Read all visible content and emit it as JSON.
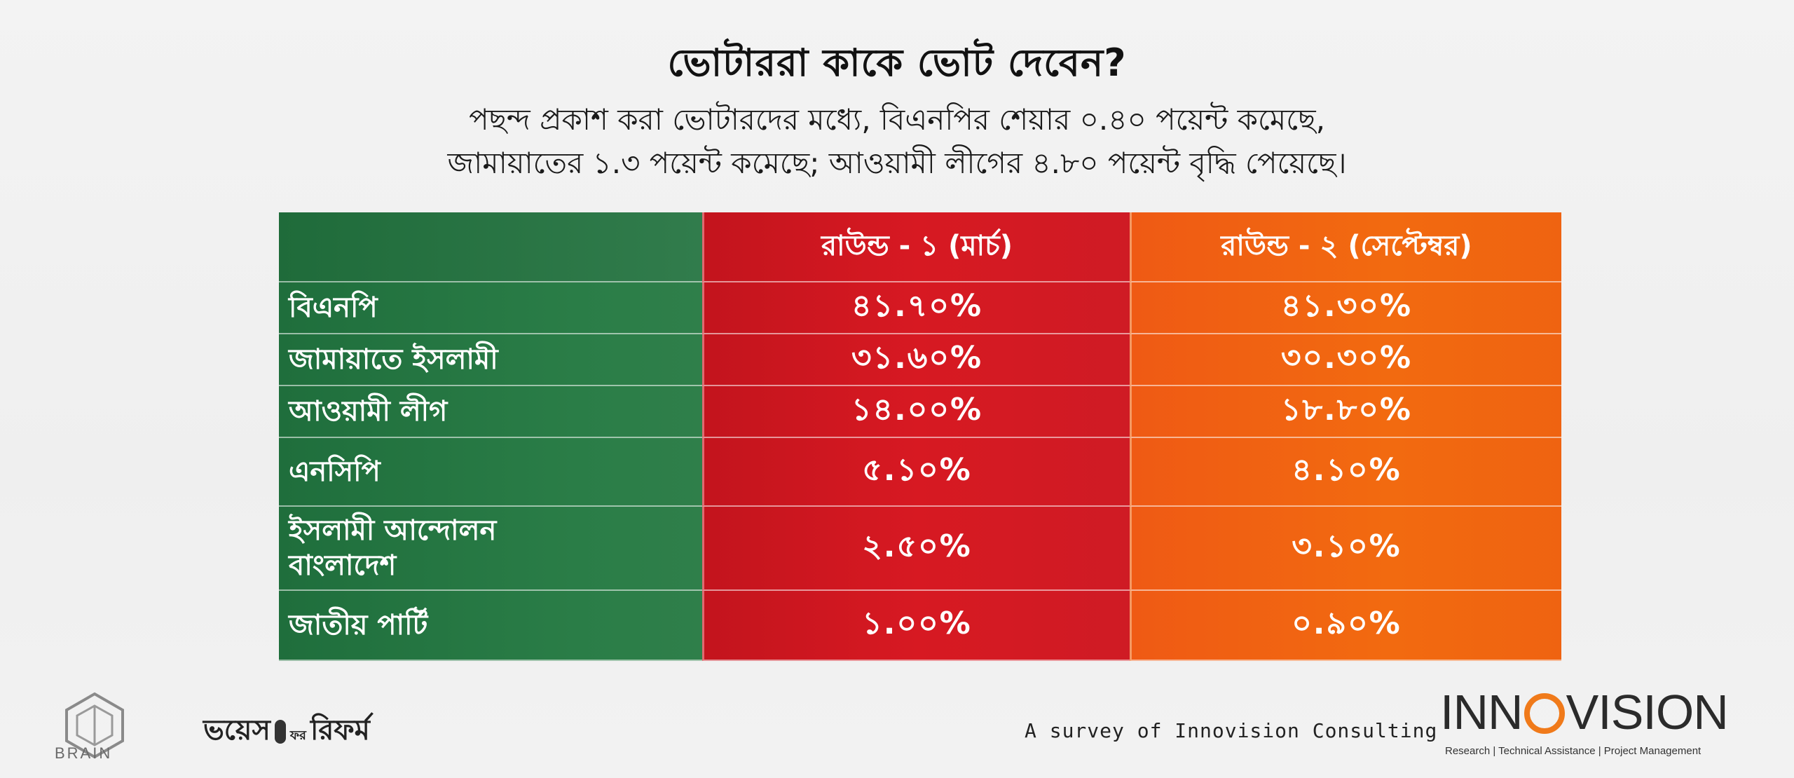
{
  "title": "ভোটাররা কাকে ভোট দেবেন?",
  "subtitle": [
    "পছন্দ প্রকাশ করা ভোটারদের মধ্যে, বিএনপির শেয়ার ০.৪০   পয়েন্ট কমেছে,",
    "জামায়াতের ১.৩ পয়েন্ট কমেছে; আওয়ামী লীগের ৪.৮০ পয়েন্ট বৃদ্ধি পেয়েছে।"
  ],
  "table": {
    "headers": [
      "",
      "রাউন্ড - ১ (মার্চ)",
      "রাউন্ড - ২ (সেপ্টেম্বর)"
    ],
    "rows": [
      {
        "party": "বিএনপি",
        "round1": "৪১.৭০%",
        "round2": "৪১.৩০%"
      },
      {
        "party": "জামায়াতে ইসলামী",
        "round1": "৩১.৬০%",
        "round2": "৩০.৩০%"
      },
      {
        "party": "আওয়ামী লীগ",
        "round1": "১৪.০০%",
        "round2": "১৮.৮০%"
      },
      {
        "party": "এনসিপি",
        "round1": "৫.১০%",
        "round2": "৪.১০%"
      },
      {
        "party": "ইসলামী আন্দোলন বাংলাদেশ",
        "round1": "২.৫০%",
        "round2": "৩.১০%"
      },
      {
        "party": "জাতীয় পার্টি",
        "round1": "১.০০%",
        "round2": "০.৯০%"
      }
    ]
  },
  "footer": {
    "brain_label": "BRAIN",
    "voice_reform_left": "ভয়েস",
    "voice_reform_mid": "ফর",
    "voice_reform_right": "রিফর্ম",
    "survey_credit": "A survey of Innovision Consulting",
    "innovision_left": "INN",
    "innovision_right": "VISION",
    "innovision_tagline": "Research | Technical Assistance | Project Management"
  },
  "colors": {
    "party_column": "#2a7d47",
    "round1_column": "#d71922",
    "round2_column": "#f26a10",
    "innovision_ring": "#f07a1a"
  }
}
